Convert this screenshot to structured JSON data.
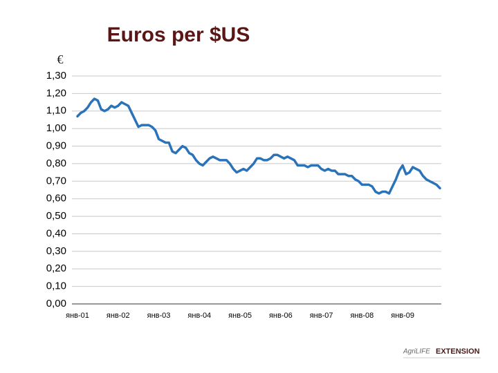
{
  "chart_data": {
    "type": "line",
    "title": "Euros per $US",
    "y_label": "€",
    "categories": [
      "янв-01",
      null,
      null,
      null,
      null,
      null,
      null,
      null,
      null,
      null,
      null,
      null,
      "янв-02",
      null,
      null,
      null,
      null,
      null,
      null,
      null,
      null,
      null,
      null,
      null,
      "янв-03",
      null,
      null,
      null,
      null,
      null,
      null,
      null,
      null,
      null,
      null,
      null,
      "янв-04",
      null,
      null,
      null,
      null,
      null,
      null,
      null,
      null,
      null,
      null,
      null,
      "янв-05",
      null,
      null,
      null,
      null,
      null,
      null,
      null,
      null,
      null,
      null,
      null,
      "янв-06",
      null,
      null,
      null,
      null,
      null,
      null,
      null,
      null,
      null,
      null,
      null,
      "янв-07",
      null,
      null,
      null,
      null,
      null,
      null,
      null,
      null,
      null,
      null,
      null,
      "янв-08",
      null,
      null,
      null,
      null,
      null,
      null,
      null,
      null,
      null,
      null,
      null,
      "янв-09",
      null,
      null,
      null,
      null,
      null,
      null,
      null,
      null,
      null,
      null,
      null
    ],
    "series": [
      {
        "color": "#2a73b8",
        "values": [
          1.07,
          1.09,
          1.1,
          1.12,
          1.15,
          1.17,
          1.16,
          1.11,
          1.1,
          1.11,
          1.13,
          1.12,
          1.13,
          1.15,
          1.14,
          1.13,
          1.09,
          1.05,
          1.01,
          1.02,
          1.02,
          1.02,
          1.01,
          0.99,
          0.94,
          0.93,
          0.92,
          0.92,
          0.87,
          0.86,
          0.88,
          0.9,
          0.89,
          0.86,
          0.85,
          0.82,
          0.8,
          0.79,
          0.81,
          0.83,
          0.84,
          0.83,
          0.82,
          0.82,
          0.82,
          0.8,
          0.77,
          0.75,
          0.76,
          0.77,
          0.76,
          0.78,
          0.8,
          0.83,
          0.83,
          0.82,
          0.82,
          0.83,
          0.85,
          0.85,
          0.84,
          0.83,
          0.84,
          0.83,
          0.82,
          0.79,
          0.79,
          0.79,
          0.78,
          0.79,
          0.79,
          0.79,
          0.77,
          0.76,
          0.77,
          0.76,
          0.76,
          0.74,
          0.74,
          0.74,
          0.73,
          0.73,
          0.71,
          0.7,
          0.68,
          0.68,
          0.68,
          0.67,
          0.64,
          0.63,
          0.64,
          0.64,
          0.63,
          0.67,
          0.71,
          0.76,
          0.79,
          0.74,
          0.75,
          0.78,
          0.77,
          0.76,
          0.73,
          0.71,
          0.7,
          0.69,
          0.68,
          0.66
        ]
      }
    ],
    "ylim": [
      0,
      1.3
    ],
    "yticks": [
      {
        "value": 0,
        "label": "0,00"
      },
      {
        "value": 0.1,
        "label": "0,10"
      },
      {
        "value": 0.2,
        "label": "0,20"
      },
      {
        "value": 0.3,
        "label": "0,30"
      },
      {
        "value": 0.4,
        "label": "0,40"
      },
      {
        "value": 0.5,
        "label": "0,50"
      },
      {
        "value": 0.6,
        "label": "0,60"
      },
      {
        "value": 0.7,
        "label": "0,70"
      },
      {
        "value": 0.8,
        "label": "0,80"
      },
      {
        "value": 0.9,
        "label": "0,90"
      },
      {
        "value": 1.0,
        "label": "1,00"
      },
      {
        "value": 1.1,
        "label": "1,10"
      },
      {
        "value": 1.2,
        "label": "1,20"
      },
      {
        "value": 1.3,
        "label": "1,30"
      }
    ],
    "grid": true
  },
  "logo": {
    "brand": "AgriLIFE",
    "name": "EXTENSION"
  }
}
